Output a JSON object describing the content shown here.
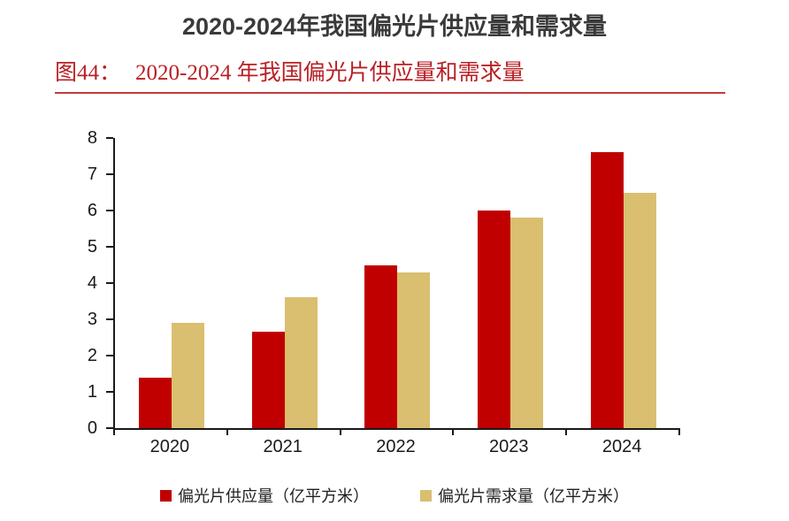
{
  "header": {
    "title": "2020-2024年我国偏光片供应量和需求量"
  },
  "caption": {
    "label": "图44：",
    "text": "2020-2024 年我国偏光片供应量和需求量"
  },
  "colors": {
    "supply": "#c00000",
    "demand": "#d9bf6f",
    "caption_red": "#b92025",
    "divider_red": "#c43b3d",
    "title_gray": "#3a3a3a",
    "axis_black": "#1a1a1a"
  },
  "chart_data": {
    "type": "bar",
    "title": "2020-2024年我国偏光片供应量和需求量",
    "categories": [
      "2020",
      "2021",
      "2022",
      "2023",
      "2024"
    ],
    "series": [
      {
        "name": "偏光片供应量（亿平方米）",
        "color_key": "supply",
        "values": [
          1.4,
          2.65,
          4.5,
          6.0,
          7.6
        ]
      },
      {
        "name": "偏光片需求量（亿平方米）",
        "color_key": "demand",
        "values": [
          2.9,
          3.6,
          4.3,
          5.8,
          6.5
        ]
      }
    ],
    "xlabel": "",
    "ylabel": "",
    "ylim": [
      0,
      8
    ],
    "yticks": [
      0,
      1,
      2,
      3,
      4,
      5,
      6,
      7,
      8
    ],
    "grid": false,
    "legend_position": "bottom"
  },
  "legend": {
    "items": [
      {
        "label": "偏光片供应量（亿平方米）",
        "color_key": "supply"
      },
      {
        "label": "偏光片需求量（亿平方米）",
        "color_key": "demand"
      }
    ]
  }
}
